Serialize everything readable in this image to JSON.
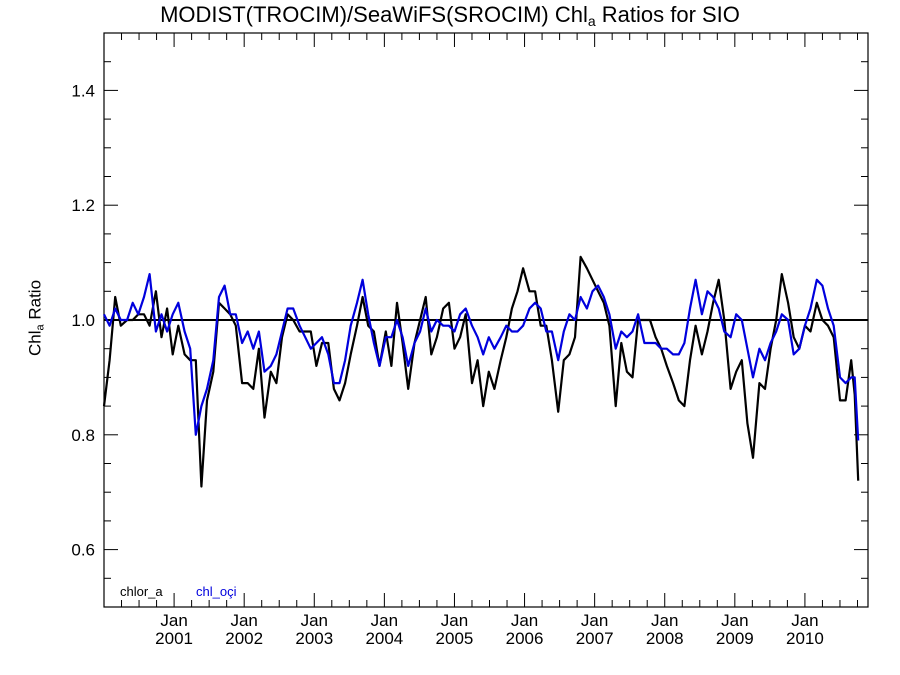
{
  "chart_data": {
    "type": "line",
    "title": {
      "main": "MODIST(TROCIM)/SeaWiFS(SROCIM)  Chl",
      "sub": "a",
      "tail": " Ratios for SIO"
    },
    "ylabel": {
      "main": "Chl",
      "sub": "a",
      "tail": " Ratio"
    },
    "ylim": [
      0.5,
      1.5
    ],
    "yticks": [
      0.6,
      0.8,
      1.0,
      1.2,
      1.4
    ],
    "ytick_labels": [
      "0.6",
      "0.8",
      "1.0",
      "1.2",
      "1.4"
    ],
    "xlim": [
      2000.0,
      2010.9
    ],
    "xticks": [
      {
        "month": "Jan",
        "year": "2001",
        "x": 2001.0
      },
      {
        "month": "Jan",
        "year": "2002",
        "x": 2002.0
      },
      {
        "month": "Jan",
        "year": "2003",
        "x": 2003.0
      },
      {
        "month": "Jan",
        "year": "2004",
        "x": 2004.0
      },
      {
        "month": "Jan",
        "year": "2005",
        "x": 2005.0
      },
      {
        "month": "Jan",
        "year": "2006",
        "x": 2006.0
      },
      {
        "month": "Jan",
        "year": "2007",
        "x": 2007.0
      },
      {
        "month": "Jan",
        "year": "2008",
        "x": 2008.0
      },
      {
        "month": "Jan",
        "year": "2009",
        "x": 2009.0
      },
      {
        "month": "Jan",
        "year": "2010",
        "x": 2010.0
      }
    ],
    "reference_line": 1.0,
    "series": [
      {
        "name": "chlor_a",
        "color": "#000000",
        "points": [
          [
            2000.0,
            0.85
          ],
          [
            2000.08,
            0.93
          ],
          [
            2000.16,
            1.04
          ],
          [
            2000.24,
            0.99
          ],
          [
            2000.33,
            1.0
          ],
          [
            2000.41,
            1.0
          ],
          [
            2000.49,
            1.01
          ],
          [
            2000.57,
            1.01
          ],
          [
            2000.65,
            0.99
          ],
          [
            2000.74,
            1.05
          ],
          [
            2000.82,
            0.97
          ],
          [
            2000.9,
            1.02
          ],
          [
            2000.98,
            0.94
          ],
          [
            2001.06,
            0.99
          ],
          [
            2001.15,
            0.94
          ],
          [
            2001.23,
            0.93
          ],
          [
            2001.31,
            0.93
          ],
          [
            2001.39,
            0.71
          ],
          [
            2001.47,
            0.86
          ],
          [
            2001.56,
            0.91
          ],
          [
            2001.64,
            1.03
          ],
          [
            2001.72,
            1.02
          ],
          [
            2001.8,
            1.01
          ],
          [
            2001.88,
            0.99
          ],
          [
            2001.97,
            0.89
          ],
          [
            2002.05,
            0.89
          ],
          [
            2002.13,
            0.88
          ],
          [
            2002.21,
            0.95
          ],
          [
            2002.29,
            0.83
          ],
          [
            2002.38,
            0.91
          ],
          [
            2002.46,
            0.89
          ],
          [
            2002.54,
            0.97
          ],
          [
            2002.62,
            1.01
          ],
          [
            2002.7,
            1.0
          ],
          [
            2002.79,
            0.98
          ],
          [
            2002.87,
            0.98
          ],
          [
            2002.95,
            0.98
          ],
          [
            2003.03,
            0.92
          ],
          [
            2003.11,
            0.96
          ],
          [
            2003.2,
            0.96
          ],
          [
            2003.28,
            0.88
          ],
          [
            2003.36,
            0.86
          ],
          [
            2003.44,
            0.89
          ],
          [
            2003.52,
            0.94
          ],
          [
            2003.61,
            0.99
          ],
          [
            2003.69,
            1.04
          ],
          [
            2003.77,
            0.99
          ],
          [
            2003.85,
            0.98
          ],
          [
            2003.93,
            0.92
          ],
          [
            2004.02,
            0.98
          ],
          [
            2004.1,
            0.92
          ],
          [
            2004.18,
            1.03
          ],
          [
            2004.26,
            0.96
          ],
          [
            2004.34,
            0.88
          ],
          [
            2004.43,
            0.96
          ],
          [
            2004.51,
            1.0
          ],
          [
            2004.59,
            1.04
          ],
          [
            2004.67,
            0.94
          ],
          [
            2004.75,
            0.97
          ],
          [
            2004.84,
            1.02
          ],
          [
            2004.92,
            1.03
          ],
          [
            2005.0,
            0.95
          ],
          [
            2005.08,
            0.97
          ],
          [
            2005.16,
            1.01
          ],
          [
            2005.25,
            0.89
          ],
          [
            2005.33,
            0.93
          ],
          [
            2005.41,
            0.85
          ],
          [
            2005.49,
            0.91
          ],
          [
            2005.57,
            0.88
          ],
          [
            2005.66,
            0.93
          ],
          [
            2005.74,
            0.97
          ],
          [
            2005.82,
            1.02
          ],
          [
            2005.9,
            1.05
          ],
          [
            2005.98,
            1.09
          ],
          [
            2006.07,
            1.05
          ],
          [
            2006.15,
            1.05
          ],
          [
            2006.23,
            0.99
          ],
          [
            2006.31,
            0.99
          ],
          [
            2006.39,
            0.93
          ],
          [
            2006.48,
            0.84
          ],
          [
            2006.56,
            0.93
          ],
          [
            2006.64,
            0.94
          ],
          [
            2006.72,
            0.97
          ],
          [
            2006.8,
            1.11
          ],
          [
            2006.89,
            1.09
          ],
          [
            2006.97,
            1.07
          ],
          [
            2007.05,
            1.05
          ],
          [
            2007.13,
            1.03
          ],
          [
            2007.21,
            0.99
          ],
          [
            2007.3,
            0.85
          ],
          [
            2007.38,
            0.96
          ],
          [
            2007.46,
            0.91
          ],
          [
            2007.54,
            0.9
          ],
          [
            2007.62,
            1.0
          ],
          [
            2007.71,
            1.0
          ],
          [
            2007.79,
            1.0
          ],
          [
            2007.87,
            0.97
          ],
          [
            2007.95,
            0.95
          ],
          [
            2008.03,
            0.92
          ],
          [
            2008.12,
            0.89
          ],
          [
            2008.2,
            0.86
          ],
          [
            2008.28,
            0.85
          ],
          [
            2008.36,
            0.93
          ],
          [
            2008.44,
            0.99
          ],
          [
            2008.53,
            0.94
          ],
          [
            2008.61,
            0.98
          ],
          [
            2008.69,
            1.03
          ],
          [
            2008.77,
            1.07
          ],
          [
            2008.85,
            1.0
          ],
          [
            2008.94,
            0.88
          ],
          [
            2009.02,
            0.91
          ],
          [
            2009.1,
            0.93
          ],
          [
            2009.18,
            0.82
          ],
          [
            2009.26,
            0.76
          ],
          [
            2009.35,
            0.89
          ],
          [
            2009.43,
            0.88
          ],
          [
            2009.51,
            0.95
          ],
          [
            2009.59,
            1.0
          ],
          [
            2009.67,
            1.08
          ],
          [
            2009.76,
            1.03
          ],
          [
            2009.84,
            0.97
          ],
          [
            2009.92,
            0.95
          ],
          [
            2010.0,
            0.99
          ],
          [
            2010.08,
            0.98
          ],
          [
            2010.17,
            1.03
          ],
          [
            2010.25,
            1.0
          ],
          [
            2010.33,
            0.99
          ],
          [
            2010.41,
            0.97
          ],
          [
            2010.5,
            0.86
          ],
          [
            2010.58,
            0.86
          ],
          [
            2010.66,
            0.93
          ],
          [
            2010.71,
            0.87
          ],
          [
            2010.76,
            0.72
          ]
        ]
      },
      {
        "name": "chl_oçi",
        "color": "#0000dd",
        "points": [
          [
            2000.0,
            1.01
          ],
          [
            2000.08,
            0.99
          ],
          [
            2000.16,
            1.02
          ],
          [
            2000.24,
            1.0
          ],
          [
            2000.33,
            1.0
          ],
          [
            2000.41,
            1.03
          ],
          [
            2000.49,
            1.01
          ],
          [
            2000.57,
            1.04
          ],
          [
            2000.65,
            1.08
          ],
          [
            2000.74,
            0.98
          ],
          [
            2000.82,
            1.01
          ],
          [
            2000.9,
            0.98
          ],
          [
            2000.98,
            1.01
          ],
          [
            2001.06,
            1.03
          ],
          [
            2001.15,
            0.98
          ],
          [
            2001.23,
            0.95
          ],
          [
            2001.31,
            0.8
          ],
          [
            2001.39,
            0.85
          ],
          [
            2001.47,
            0.88
          ],
          [
            2001.56,
            0.93
          ],
          [
            2001.64,
            1.04
          ],
          [
            2001.72,
            1.06
          ],
          [
            2001.8,
            1.01
          ],
          [
            2001.88,
            1.01
          ],
          [
            2001.97,
            0.96
          ],
          [
            2002.05,
            0.98
          ],
          [
            2002.13,
            0.95
          ],
          [
            2002.21,
            0.98
          ],
          [
            2002.29,
            0.91
          ],
          [
            2002.38,
            0.92
          ],
          [
            2002.46,
            0.94
          ],
          [
            2002.54,
            0.98
          ],
          [
            2002.62,
            1.02
          ],
          [
            2002.7,
            1.02
          ],
          [
            2002.79,
            0.99
          ],
          [
            2002.87,
            0.97
          ],
          [
            2002.95,
            0.95
          ],
          [
            2003.03,
            0.96
          ],
          [
            2003.11,
            0.97
          ],
          [
            2003.2,
            0.94
          ],
          [
            2003.28,
            0.89
          ],
          [
            2003.36,
            0.89
          ],
          [
            2003.44,
            0.93
          ],
          [
            2003.52,
            0.99
          ],
          [
            2003.61,
            1.03
          ],
          [
            2003.69,
            1.07
          ],
          [
            2003.77,
            1.01
          ],
          [
            2003.85,
            0.96
          ],
          [
            2003.93,
            0.92
          ],
          [
            2004.02,
            0.97
          ],
          [
            2004.1,
            0.97
          ],
          [
            2004.18,
            1.0
          ],
          [
            2004.26,
            0.97
          ],
          [
            2004.34,
            0.92
          ],
          [
            2004.43,
            0.96
          ],
          [
            2004.51,
            0.98
          ],
          [
            2004.59,
            1.02
          ],
          [
            2004.67,
            0.98
          ],
          [
            2004.75,
            1.0
          ],
          [
            2004.84,
            0.99
          ],
          [
            2004.92,
            0.99
          ],
          [
            2005.0,
            0.98
          ],
          [
            2005.08,
            1.01
          ],
          [
            2005.16,
            1.02
          ],
          [
            2005.25,
            0.99
          ],
          [
            2005.33,
            0.97
          ],
          [
            2005.41,
            0.94
          ],
          [
            2005.49,
            0.97
          ],
          [
            2005.57,
            0.95
          ],
          [
            2005.66,
            0.97
          ],
          [
            2005.74,
            0.99
          ],
          [
            2005.82,
            0.98
          ],
          [
            2005.9,
            0.98
          ],
          [
            2005.98,
            0.99
          ],
          [
            2006.07,
            1.02
          ],
          [
            2006.15,
            1.03
          ],
          [
            2006.23,
            1.02
          ],
          [
            2006.31,
            0.98
          ],
          [
            2006.39,
            0.98
          ],
          [
            2006.48,
            0.93
          ],
          [
            2006.56,
            0.98
          ],
          [
            2006.64,
            1.01
          ],
          [
            2006.72,
            1.0
          ],
          [
            2006.8,
            1.04
          ],
          [
            2006.89,
            1.02
          ],
          [
            2006.97,
            1.05
          ],
          [
            2007.05,
            1.06
          ],
          [
            2007.13,
            1.04
          ],
          [
            2007.21,
            1.01
          ],
          [
            2007.3,
            0.95
          ],
          [
            2007.38,
            0.98
          ],
          [
            2007.46,
            0.97
          ],
          [
            2007.54,
            0.98
          ],
          [
            2007.62,
            1.01
          ],
          [
            2007.71,
            0.96
          ],
          [
            2007.79,
            0.96
          ],
          [
            2007.87,
            0.96
          ],
          [
            2007.95,
            0.95
          ],
          [
            2008.03,
            0.95
          ],
          [
            2008.12,
            0.94
          ],
          [
            2008.2,
            0.94
          ],
          [
            2008.28,
            0.96
          ],
          [
            2008.36,
            1.02
          ],
          [
            2008.44,
            1.07
          ],
          [
            2008.53,
            1.01
          ],
          [
            2008.61,
            1.05
          ],
          [
            2008.69,
            1.04
          ],
          [
            2008.77,
            1.02
          ],
          [
            2008.85,
            0.98
          ],
          [
            2008.94,
            0.97
          ],
          [
            2009.02,
            1.01
          ],
          [
            2009.1,
            1.0
          ],
          [
            2009.18,
            0.95
          ],
          [
            2009.26,
            0.9
          ],
          [
            2009.35,
            0.95
          ],
          [
            2009.43,
            0.93
          ],
          [
            2009.51,
            0.96
          ],
          [
            2009.59,
            0.98
          ],
          [
            2009.67,
            1.01
          ],
          [
            2009.76,
            1.0
          ],
          [
            2009.84,
            0.94
          ],
          [
            2009.92,
            0.95
          ],
          [
            2010.0,
            0.99
          ],
          [
            2010.08,
            1.02
          ],
          [
            2010.17,
            1.07
          ],
          [
            2010.25,
            1.06
          ],
          [
            2010.33,
            1.02
          ],
          [
            2010.41,
            0.99
          ],
          [
            2010.5,
            0.9
          ],
          [
            2010.58,
            0.89
          ],
          [
            2010.66,
            0.9
          ],
          [
            2010.71,
            0.9
          ],
          [
            2010.76,
            0.79
          ]
        ]
      }
    ]
  }
}
